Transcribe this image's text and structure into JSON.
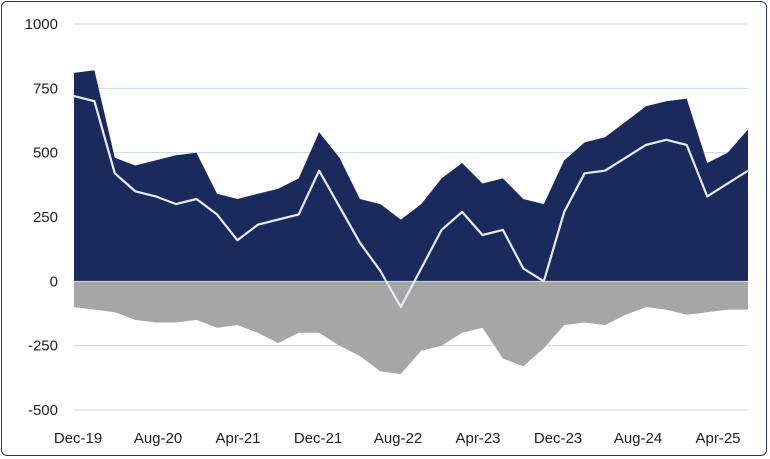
{
  "chart_data": {
    "type": "area",
    "title": "",
    "xlabel": "",
    "ylabel": "",
    "ylim": [
      -500,
      1000
    ],
    "yticks": [
      1000,
      750,
      500,
      250,
      0,
      -250,
      -500
    ],
    "ytick_labels": [
      "1000",
      "750",
      "500",
      "250",
      "0",
      "-250",
      "-500"
    ],
    "xtick_labels": [
      "Dec-19",
      "Aug-20",
      "Apr-21",
      "Dec-21",
      "Aug-22",
      "Apr-23",
      "Dec-23",
      "Aug-24",
      "Apr-25"
    ],
    "grid": true,
    "legend": "none",
    "x": [
      "Dec-19",
      "Feb-20",
      "Apr-20",
      "Jun-20",
      "Aug-20",
      "Oct-20",
      "Dec-20",
      "Feb-21",
      "Apr-21",
      "Jun-21",
      "Aug-21",
      "Oct-21",
      "Dec-21",
      "Feb-22",
      "Apr-22",
      "Jun-22",
      "Aug-22",
      "Oct-22",
      "Dec-22",
      "Feb-23",
      "Apr-23",
      "Jun-23",
      "Aug-23",
      "Oct-23",
      "Dec-23",
      "Feb-24",
      "Apr-24",
      "Jun-24",
      "Aug-24",
      "Oct-24",
      "Dec-24",
      "Feb-25",
      "Apr-25",
      "Jun-25"
    ],
    "series": [
      {
        "name": "",
        "color": "#1b2a5c",
        "values": [
          810,
          820,
          480,
          450,
          470,
          490,
          500,
          340,
          320,
          340,
          360,
          400,
          580,
          480,
          320,
          300,
          240,
          300,
          400,
          460,
          380,
          400,
          320,
          300,
          470,
          540,
          560,
          620,
          680,
          700,
          710,
          460,
          500,
          590
        ]
      },
      {
        "name": "",
        "color": "#a6a6a6",
        "values": [
          -100,
          -110,
          -120,
          -150,
          -160,
          -160,
          -150,
          -180,
          -170,
          -200,
          -240,
          -200,
          -200,
          -250,
          -290,
          -350,
          -360,
          -270,
          -250,
          -200,
          -180,
          -300,
          -330,
          -260,
          -170,
          -160,
          -170,
          -130,
          -100,
          -110,
          -130,
          -120,
          -110,
          -110
        ]
      },
      {
        "name": "",
        "color": "#e8ecf2",
        "values": [
          720,
          700,
          420,
          350,
          330,
          300,
          320,
          260,
          160,
          220,
          240,
          260,
          430,
          290,
          150,
          40,
          -100,
          50,
          200,
          270,
          180,
          200,
          50,
          0,
          270,
          420,
          430,
          480,
          530,
          550,
          530,
          330,
          380,
          430
        ]
      }
    ]
  }
}
